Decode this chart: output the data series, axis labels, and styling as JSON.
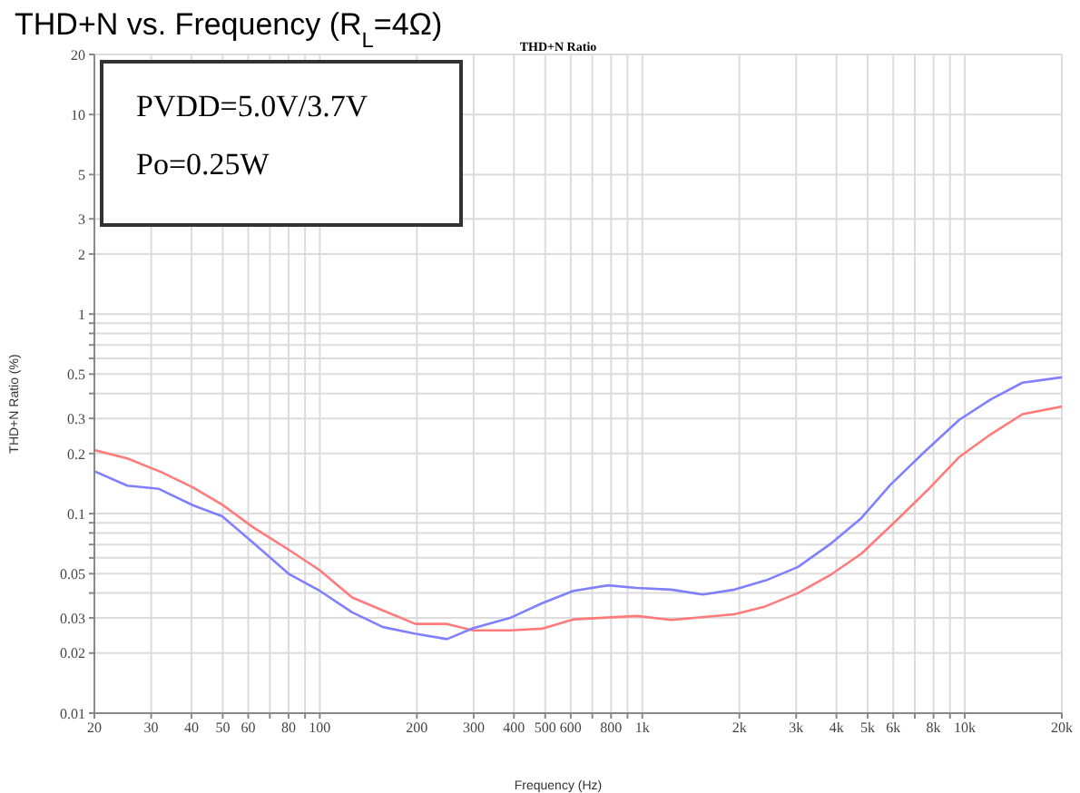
{
  "chart_data": {
    "type": "line",
    "title": "THD+N vs. Frequency (R$_{L}$=4Ω)",
    "subtitle": "THD+N Ratio",
    "xlabel": "Frequency (Hz)",
    "ylabel": "THD+N Ratio (%)",
    "annotations": [
      "PVDD=5.0V/3.7V",
      "Po=0.25W"
    ],
    "log": "xy",
    "grid": true,
    "marker": "none",
    "line_style": "solid",
    "xlim": [
      20,
      20000
    ],
    "xticks": [
      20,
      30,
      40,
      50,
      60,
      {
        "value": 70,
        "label": null
      },
      80,
      {
        "value": 90,
        "label": null
      },
      100,
      200,
      300,
      400,
      500,
      600,
      {
        "value": 700,
        "label": null
      },
      800,
      {
        "value": 900,
        "label": null
      },
      {
        "value": 1000,
        "label": "1k"
      },
      {
        "value": 2000,
        "label": "2k"
      },
      {
        "value": 3000,
        "label": "3k"
      },
      {
        "value": 4000,
        "label": "4k"
      },
      {
        "value": 5000,
        "label": "5k"
      },
      {
        "value": 6000,
        "label": "6k"
      },
      {
        "value": 7000,
        "label": null
      },
      {
        "value": 8000,
        "label": "8k"
      },
      {
        "value": 9000,
        "label": null
      },
      {
        "value": 10000,
        "label": "10k"
      },
      {
        "value": 20000,
        "label": "20k"
      }
    ],
    "ylim": [
      0.01,
      20
    ],
    "yticks": [
      0.01,
      0.02,
      0.03,
      {
        "value": 0.04,
        "label": null
      },
      0.05,
      {
        "value": 0.06,
        "label": null
      },
      {
        "value": 0.07,
        "label": null
      },
      {
        "value": 0.08,
        "label": null
      },
      {
        "value": 0.09,
        "label": null
      },
      0.1,
      0.2,
      0.3,
      {
        "value": 0.4,
        "label": null
      },
      0.5,
      {
        "value": 0.6,
        "label": null
      },
      {
        "value": 0.7,
        "label": null
      },
      {
        "value": 0.8,
        "label": null
      },
      {
        "value": 0.9,
        "label": null
      },
      1,
      2,
      3,
      5,
      10,
      20
    ],
    "series": [
      {
        "color": "#ff7b7b",
        "x": [
          20,
          25.3,
          32.4,
          40.5,
          49.8,
          62.4,
          80,
          100,
          126,
          155,
          198,
          248,
          298,
          389,
          488,
          611,
          962,
          1230,
          1933,
          2375,
          3040,
          3810,
          4780,
          5990,
          7660,
          9610,
          12050,
          15100,
          20000
        ],
        "values": [
          0.208,
          0.189,
          0.161,
          0.135,
          0.111,
          0.085,
          0.066,
          0.052,
          0.038,
          0.033,
          0.028,
          0.028,
          0.026,
          0.026,
          0.0265,
          0.0295,
          0.0307,
          0.0293,
          0.0313,
          0.034,
          0.04,
          0.049,
          0.063,
          0.089,
          0.131,
          0.192,
          0.25,
          0.315,
          0.344
        ]
      },
      {
        "color": "#8080ff",
        "x": [
          20,
          25.3,
          31.7,
          40.5,
          49.8,
          62.4,
          80,
          100,
          126,
          157,
          198,
          248,
          298,
          389,
          488,
          611,
          783,
          962,
          1230,
          1542,
          1933,
          2420,
          3040,
          3810,
          4780,
          5870,
          7500,
          9610,
          12050,
          15100,
          20000
        ],
        "values": [
          0.163,
          0.138,
          0.133,
          0.11,
          0.097,
          0.071,
          0.05,
          0.041,
          0.032,
          0.027,
          0.025,
          0.0235,
          0.0266,
          0.03,
          0.0355,
          0.041,
          0.0437,
          0.0424,
          0.0416,
          0.0393,
          0.0416,
          0.0463,
          0.054,
          0.07,
          0.095,
          0.139,
          0.204,
          0.295,
          0.374,
          0.453,
          0.482
        ]
      }
    ]
  }
}
